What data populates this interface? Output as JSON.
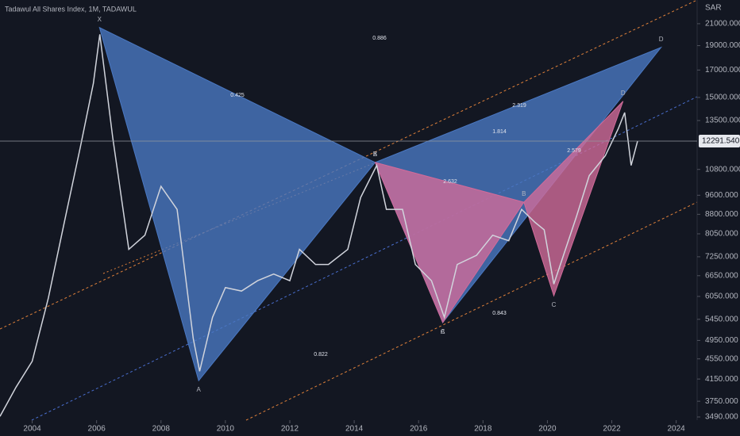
{
  "chart_data": {
    "type": "line",
    "title": "Tadawul All Shares Index, 1M, TADAWUL",
    "y_axis_label": "SAR",
    "log_scale": true,
    "xlim": [
      2003.0,
      2024.65
    ],
    "ylim": [
      3440,
      23400
    ],
    "xticks": [
      2004,
      2006,
      2008,
      2010,
      2012,
      2014,
      2016,
      2018,
      2020,
      2022,
      2024
    ],
    "yticks": [
      {
        "value": 3490,
        "label": "3490.000"
      },
      {
        "value": 3750,
        "label": "3750.000"
      },
      {
        "value": 4150,
        "label": "4150.000"
      },
      {
        "value": 4550,
        "label": "4550.000"
      },
      {
        "value": 4950,
        "label": "4950.000"
      },
      {
        "value": 5450,
        "label": "5450.000"
      },
      {
        "value": 6050,
        "label": "6050.000"
      },
      {
        "value": 6650,
        "label": "6650.000"
      },
      {
        "value": 7250,
        "label": "7250.000"
      },
      {
        "value": 8050,
        "label": "8050.000"
      },
      {
        "value": 8800,
        "label": "8800.000"
      },
      {
        "value": 9600,
        "label": "9600.000"
      },
      {
        "value": 10800,
        "label": "10800.000"
      },
      {
        "value": 13500,
        "label": "13500.000"
      },
      {
        "value": 15000,
        "label": "15000.000"
      },
      {
        "value": 17000,
        "label": "17000.000"
      },
      {
        "value": 19000,
        "label": "19000.000"
      },
      {
        "value": 21000,
        "label": "21000.000"
      }
    ],
    "last_price": {
      "value": 12291.54,
      "label": "12291.540"
    },
    "series": [
      {
        "color": "#d1d4dc",
        "x": [
          2003.0,
          2003.5,
          2004.0,
          2004.5,
          2005.0,
          2005.5,
          2005.9,
          2006.1,
          2006.5,
          2007.0,
          2007.5,
          2008.0,
          2008.5,
          2009.0,
          2009.2,
          2009.6,
          2010.0,
          2010.5,
          2011.0,
          2011.5,
          2012.0,
          2012.3,
          2012.8,
          2013.2,
          2013.8,
          2014.2,
          2014.7,
          2015.0,
          2015.5,
          2015.9,
          2016.4,
          2016.8,
          2017.2,
          2017.8,
          2018.3,
          2018.8,
          2019.2,
          2019.6,
          2019.9,
          2020.2,
          2020.5,
          2020.9,
          2021.3,
          2021.8,
          2022.2,
          2022.4,
          2022.6,
          2022.8
        ],
        "values": [
          3500,
          4000,
          4500,
          6000,
          8500,
          12000,
          16000,
          20000,
          12500,
          7500,
          8000,
          10000,
          9000,
          5000,
          4300,
          5500,
          6300,
          6200,
          6500,
          6700,
          6500,
          7500,
          7000,
          7000,
          7500,
          9500,
          11000,
          9000,
          9000,
          7000,
          6500,
          5500,
          7000,
          7300,
          8000,
          7800,
          9000,
          8500,
          8200,
          6400,
          7300,
          8700,
          10500,
          11500,
          13000,
          14000,
          11000,
          12290
        ]
      }
    ],
    "patterns": [
      {
        "color": "#4a78c2",
        "x": [
          2006.09,
          2009.17,
          2014.65,
          2016.75,
          2023.53
        ],
        "y": [
          20640,
          4120,
          11150,
          5370,
          18850
        ],
        "labels": [
          "X",
          "A",
          "B",
          "C",
          "D"
        ]
      },
      {
        "color": "#d16b9a",
        "x": [
          2014.65,
          2016.75,
          2019.27,
          2020.2,
          2022.35
        ],
        "y": [
          11150,
          5370,
          9300,
          6070,
          14740
        ],
        "labels": [
          "X",
          "A",
          "B",
          "C",
          "D"
        ]
      }
    ],
    "ratios": [
      0.886,
      0.425,
      2.319,
      1.814,
      2.632,
      2.579,
      0.843,
      0.822
    ]
  }
}
